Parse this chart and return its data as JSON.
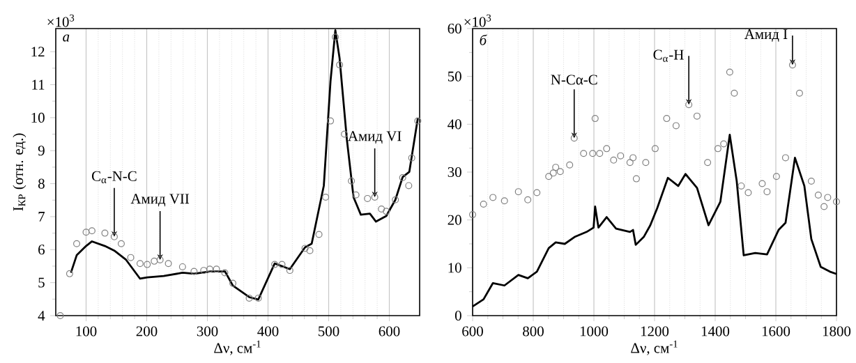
{
  "chart_data": [
    {
      "type": "line",
      "xlabel": "Δν, см$^{-1}$",
      "ylabel": "I$_{КР}$ (отн. ед.)",
      "xlim": [
        50,
        650
      ],
      "ylim": [
        4,
        12.7
      ],
      "xticks": [
        100,
        200,
        300,
        400,
        500,
        600
      ],
      "yticks": [
        4,
        5,
        6,
        7,
        8,
        9,
        10,
        11,
        12
      ],
      "grid": "x",
      "series": [
        {
          "type": "scatter",
          "marker": "circle",
          "color": "#808080",
          "x": [
            57.4,
            72.9,
            84.5,
            100,
            109.7,
            131,
            146.5,
            158,
            173.6,
            189,
            200.8,
            212.4,
            222,
            235.7,
            259,
            278,
            294,
            304,
            315,
            328.7,
            342,
            369,
            384,
            411,
            423,
            436,
            461,
            469,
            484,
            495,
            503,
            511,
            518,
            526,
            537.5,
            545,
            564,
            576,
            587,
            595,
            610,
            622,
            632,
            637,
            647
          ],
          "values": [
            4.0,
            5.27,
            6.18,
            6.53,
            6.57,
            6.5,
            6.39,
            6.18,
            5.76,
            5.58,
            5.55,
            5.65,
            5.69,
            5.58,
            5.48,
            5.34,
            5.37,
            5.41,
            5.41,
            5.3,
            4.98,
            4.53,
            4.53,
            5.55,
            5.55,
            5.37,
            6.04,
            5.97,
            6.46,
            7.59,
            9.9,
            12.44,
            11.6,
            9.5,
            8.08,
            7.66,
            7.55,
            7.59,
            7.23,
            7.16,
            7.51,
            8.18,
            7.94,
            8.78,
            9.9
          ]
        },
        {
          "line_style": "solid",
          "color": "#000000",
          "x": [
            75,
            84.5,
            100,
            109.7,
            131,
            146.5,
            166,
            189,
            200.8,
            228,
            259,
            278,
            305,
            329,
            342,
            369,
            384,
            411,
            436,
            461,
            472,
            492,
            503,
            511,
            518,
            530,
            541,
            553,
            568,
            578,
            595,
            610,
            622,
            633,
            647
          ],
          "values": [
            5.3,
            5.83,
            6.11,
            6.25,
            6.11,
            5.97,
            5.69,
            5.12,
            5.16,
            5.2,
            5.3,
            5.27,
            5.34,
            5.34,
            4.91,
            4.56,
            4.49,
            5.58,
            5.41,
            6.07,
            6.18,
            7.94,
            11.1,
            12.65,
            11.8,
            9.34,
            7.59,
            7.06,
            7.09,
            6.85,
            7.02,
            7.51,
            8.2,
            8.36,
            9.98
          ]
        }
      ],
      "annotations": [
        "×10$^{3}$",
        "а",
        {
          "text": "C$_{α}$-N-C",
          "x": 146.5,
          "y": 6.39
        },
        {
          "text": "Амид VII",
          "x": 222,
          "y": 5.69
        },
        {
          "text": "Амид VI",
          "x": 576,
          "y": 7.59
        }
      ]
    },
    {
      "type": "line",
      "xlabel": "Δν, см$^{-1}$",
      "xlim": [
        600,
        1800
      ],
      "ylim": [
        0,
        60
      ],
      "xticks": [
        600,
        800,
        1000,
        1200,
        1400,
        1600,
        1800
      ],
      "yticks": [
        0,
        10,
        20,
        30,
        40,
        50,
        60
      ],
      "grid": "x",
      "series": [
        {
          "type": "scatter",
          "marker": "circle",
          "color": "#808080",
          "x": [
            600,
            636,
            667,
            705,
            751,
            782,
            812,
            851,
            866,
            874,
            889,
            920,
            935,
            966,
            996,
            1004,
            1019,
            1042,
            1065,
            1088,
            1119,
            1129,
            1140,
            1171,
            1202,
            1240,
            1271,
            1313,
            1340,
            1375,
            1409,
            1428,
            1448,
            1463,
            1486,
            1509,
            1555,
            1571,
            1602,
            1632,
            1655,
            1678,
            1717,
            1740,
            1759,
            1771,
            1800
          ],
          "values": [
            21.1,
            23.3,
            24.7,
            24.0,
            25.9,
            24.2,
            25.7,
            29.1,
            29.8,
            31.0,
            30.1,
            31.5,
            37.1,
            33.9,
            33.9,
            41.2,
            33.9,
            34.9,
            32.5,
            33.4,
            32.0,
            33.0,
            28.6,
            32.0,
            34.9,
            41.2,
            39.7,
            44.1,
            41.7,
            32.0,
            34.9,
            35.9,
            50.9,
            46.5,
            27.1,
            25.7,
            27.6,
            25.9,
            29.1,
            33.0,
            52.4,
            46.5,
            28.1,
            25.2,
            22.8,
            24.7,
            23.8
          ]
        },
        {
          "line_style": "solid",
          "color": "#000000",
          "x": [
            600,
            636,
            667,
            705,
            751,
            782,
            812,
            851,
            874,
            904,
            938,
            976,
            999,
            1004,
            1015,
            1042,
            1073,
            1119,
            1129,
            1138,
            1165,
            1186,
            1209,
            1244,
            1278,
            1302,
            1340,
            1378,
            1417,
            1448,
            1471,
            1494,
            1532,
            1571,
            1609,
            1632,
            1663,
            1694,
            1717,
            1748,
            1778,
            1800
          ],
          "values": [
            1.9,
            3.4,
            6.8,
            6.3,
            8.5,
            7.8,
            9.2,
            14.1,
            15.3,
            15.0,
            16.5,
            17.5,
            18.4,
            22.8,
            18.4,
            20.6,
            18.2,
            17.5,
            17.9,
            14.8,
            16.5,
            18.9,
            22.5,
            28.8,
            27.1,
            29.6,
            26.7,
            18.9,
            23.8,
            37.8,
            28.1,
            12.6,
            13.1,
            12.8,
            17.9,
            19.4,
            33.0,
            27.1,
            16.0,
            10.2,
            9.2,
            8.7
          ]
        }
      ],
      "annotations": [
        "×10$^{3}$",
        "б",
        {
          "text": "N-Cα-C",
          "x": 935,
          "y": 37.1
        },
        {
          "text": "C$_{α}$-H",
          "x": 1313,
          "y": 44.1
        },
        {
          "text": "Амид I",
          "x": 1655,
          "y": 52.4
        }
      ]
    }
  ]
}
